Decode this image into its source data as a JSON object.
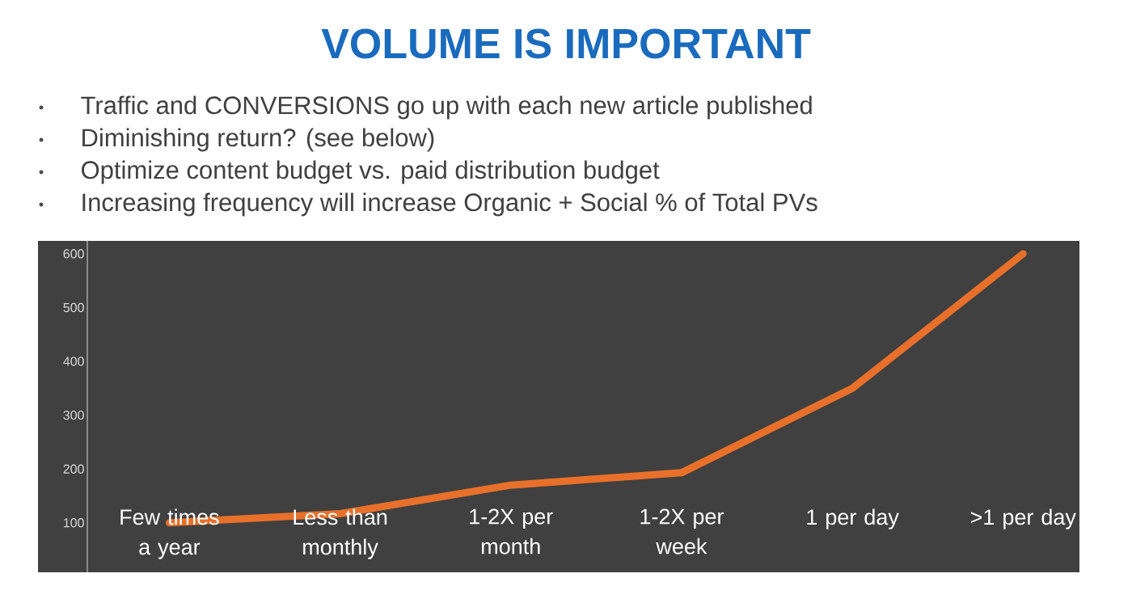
{
  "chart_data": {
    "type": "line",
    "title": "VOLUME IS IMPORTANT",
    "annotations": [
      "Traffic and CONVERSIONS go up with each new article published",
      "Diminishing return? (see below)",
      "Optimize content budget vs. paid distribution budget",
      "Increasing frequency will increase Organic + Social % of Total PVs"
    ],
    "categories": [
      "Few times a year",
      "Less than monthly",
      "1-2X per month",
      "1-2X per week",
      "1 per day",
      ">1 per day"
    ],
    "values": [
      100,
      117,
      170,
      193,
      350,
      600
    ],
    "color": "#e8702a",
    "ylim": [
      8,
      624
    ],
    "yticks": [
      100,
      200,
      300,
      400,
      500,
      600
    ],
    "grid": false,
    "marker": "none",
    "line_style": "solid"
  }
}
